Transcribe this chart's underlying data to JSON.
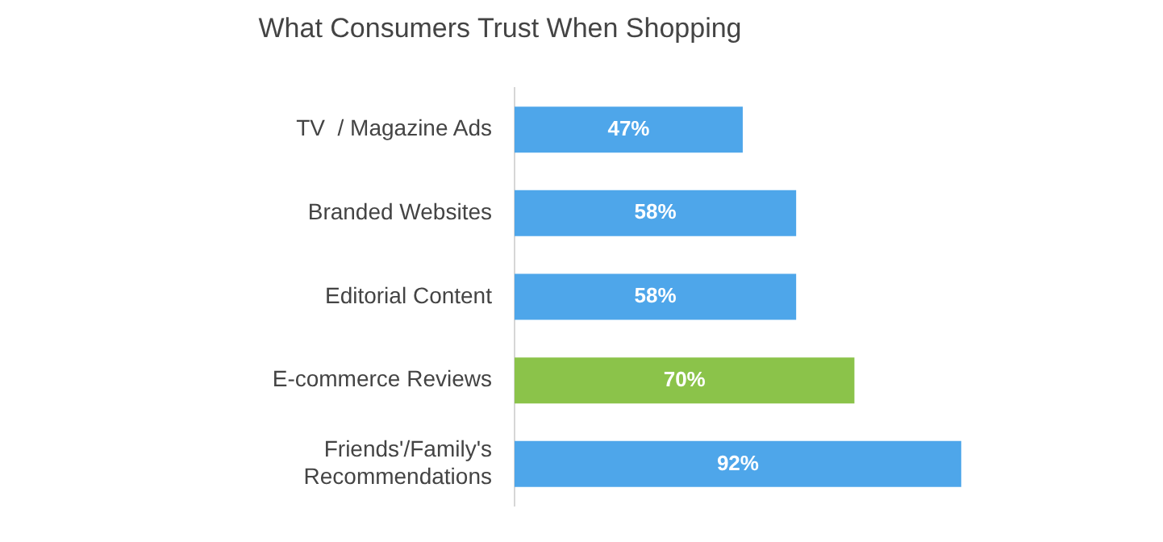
{
  "chart_data": {
    "type": "bar",
    "orientation": "horizontal",
    "title": "What Consumers Trust When Shopping",
    "categories": [
      "TV  / Magazine Ads",
      "Branded Websites",
      "Editorial Content",
      "E-commerce Reviews",
      "Friends'/Family's Recommendations"
    ],
    "values": [
      47,
      58,
      58,
      70,
      92
    ],
    "colors": [
      "#4ea6ea",
      "#4ea6ea",
      "#4ea6ea",
      "#8bc34a",
      "#4ea6ea"
    ],
    "value_labels": [
      "47%",
      "58%",
      "58%",
      "70%",
      "92%"
    ],
    "tick_labels": "y",
    "legend": false
  }
}
